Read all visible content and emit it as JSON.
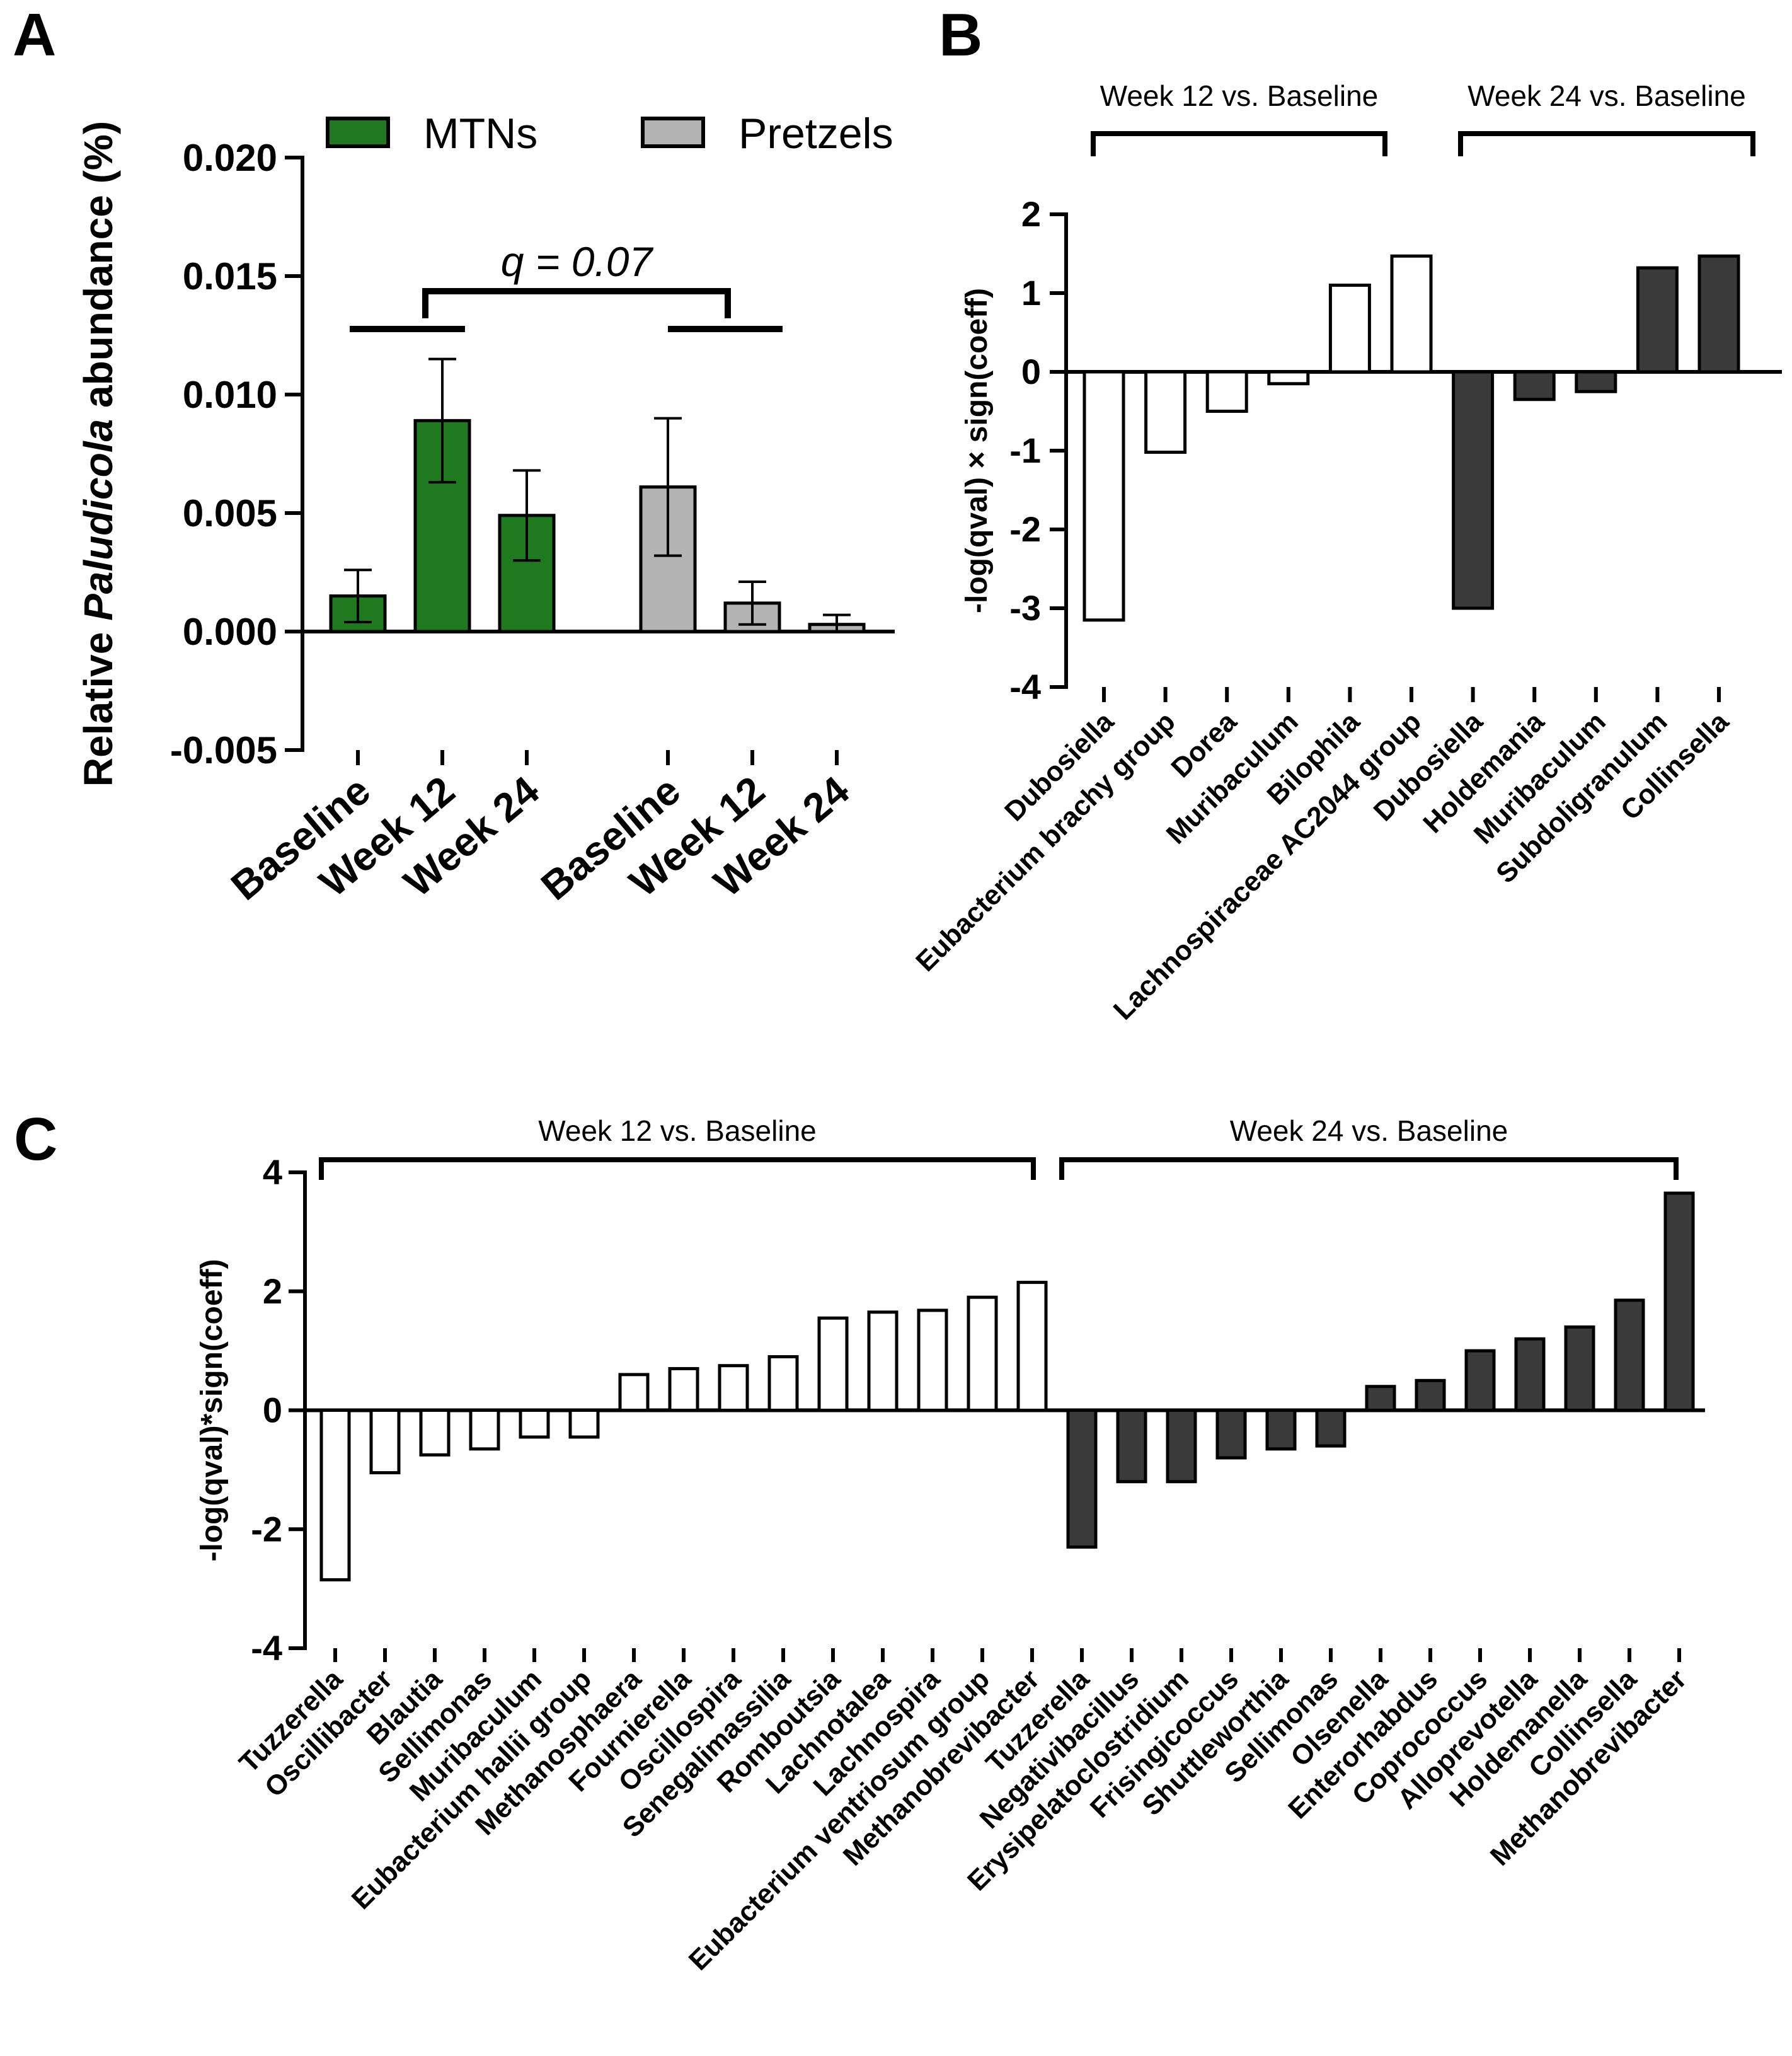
{
  "chart_data": [
    {
      "panel": "A",
      "type": "bar",
      "ylabel_prefix": "Relative ",
      "ylabel_italic": "Paludicola",
      "ylabel_suffix": " abundance (%)",
      "ylim": [
        -0.005,
        0.02
      ],
      "yticks": [
        "-0.005",
        "0.000",
        "0.005",
        "0.010",
        "0.015",
        "0.020"
      ],
      "legend": [
        {
          "name": "MTNs",
          "color": "#1f7a1f"
        },
        {
          "name": "Pretzels",
          "color": "#b3b3b3"
        }
      ],
      "groups": [
        {
          "name": "MTNs",
          "color": "#1f7a1f",
          "categories": [
            "Baseline",
            "Week 12",
            "Week 24"
          ],
          "values": [
            0.0015,
            0.0089,
            0.0049
          ],
          "errors": [
            0.0011,
            0.0026,
            0.0019
          ]
        },
        {
          "name": "Pretzels",
          "color": "#b3b3b3",
          "categories": [
            "Baseline",
            "Week 12",
            "Week 24"
          ],
          "values": [
            0.0061,
            0.0012,
            0.0003
          ],
          "errors": [
            0.0029,
            0.0009,
            0.0004
          ]
        }
      ],
      "annotation": "q = 0.07"
    },
    {
      "panel": "B",
      "type": "bar",
      "ylabel": "-log(qval) × sign(coeff)",
      "ylim": [
        -4,
        2
      ],
      "yticks": [
        "-4",
        "-3",
        "-2",
        "-1",
        "0",
        "1",
        "2"
      ],
      "comparisons": [
        {
          "label": "Week 12 vs. Baseline",
          "color": "#ffffff",
          "categories": [
            "Dubosiella",
            "Eubacterium brachy group",
            "Dorea",
            "Muribaculum",
            "Bilophila",
            "Lachnospiraceae AC2044 group"
          ],
          "values": [
            -3.15,
            -1.02,
            -0.5,
            -0.15,
            1.1,
            1.47
          ]
        },
        {
          "label": "Week 24  vs. Baseline",
          "color": "#3a3a3a",
          "categories": [
            "Dubosiella",
            "Holdemania",
            "Muribaculum",
            "Subdoligranulum",
            "Collinsella"
          ],
          "values": [
            -3.0,
            -0.35,
            -0.25,
            1.32,
            1.47
          ]
        }
      ]
    },
    {
      "panel": "C",
      "type": "bar",
      "ylabel": "-log(qval)*sign(coeff)",
      "ylim": [
        -4,
        4
      ],
      "yticks": [
        "-4",
        "-2",
        "0",
        "2",
        "4"
      ],
      "comparisons": [
        {
          "label": "Week 12 vs. Baseline",
          "color": "#ffffff",
          "categories": [
            "Tuzzerella",
            "Oscillibacter",
            "Blautia",
            "Sellimonas",
            "Muribaculum",
            "Eubacterium  hallii group",
            "Methanosphaera",
            "Fournierella",
            "Oscillospira",
            "Senegalimassilia",
            "Romboutsia",
            "Lachnotalea",
            "Lachnospira",
            "Eubacterium  ventriosum group",
            "Methanobrevibacter"
          ],
          "values": [
            -2.85,
            -1.05,
            -0.75,
            -0.65,
            -0.45,
            -0.45,
            0.6,
            0.7,
            0.75,
            0.9,
            1.55,
            1.65,
            1.68,
            1.9,
            2.15
          ]
        },
        {
          "label": "Week 24  vs. Baseline",
          "color": "#3a3a3a",
          "categories": [
            "Tuzzerella",
            "Negativibacillus",
            "Erysipelatoclostridium",
            "Frisingicoccus",
            "Shuttleworthia",
            "Sellimonas",
            "Olsenella",
            "Enterorhabdus",
            "Coprococcus",
            "Alloprevotella",
            "Holdemanella",
            "Collinsella",
            "Methanobrevibacter"
          ],
          "values": [
            -2.3,
            -1.2,
            -1.2,
            -0.8,
            -0.65,
            -0.6,
            0.4,
            0.5,
            1.0,
            1.2,
            1.4,
            1.85,
            3.65
          ]
        }
      ]
    }
  ],
  "panel_labels": [
    "A",
    "B",
    "C"
  ]
}
